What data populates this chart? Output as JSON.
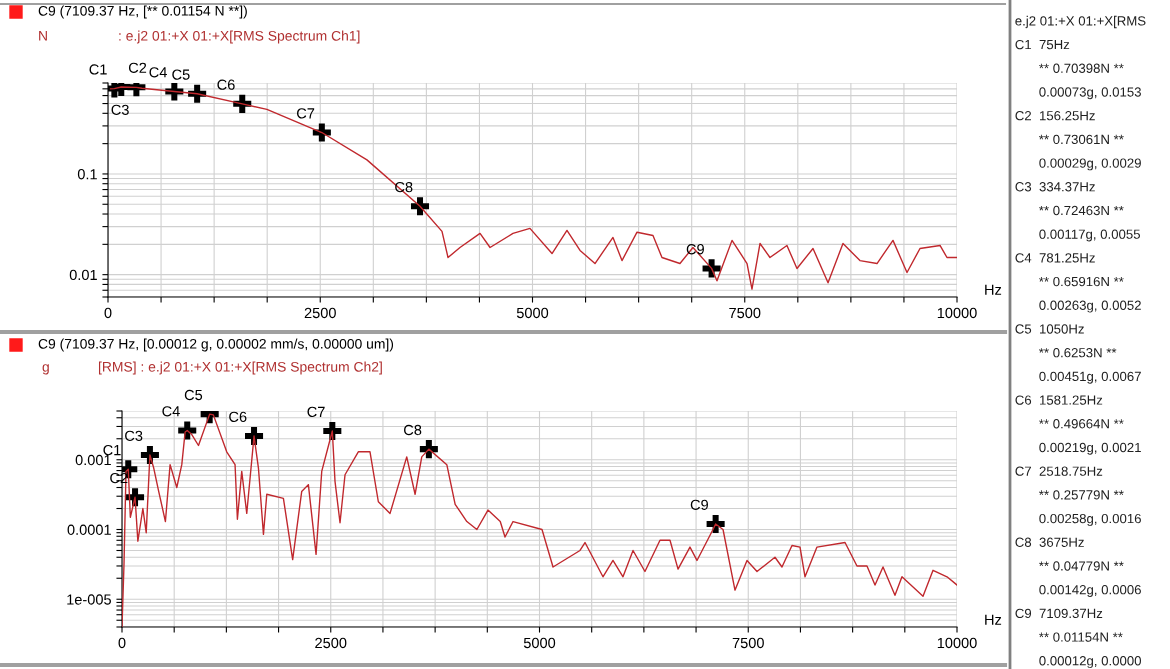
{
  "chart_data": [
    {
      "type": "line",
      "title": "C9 (7109.37 Hz, [** 0.01154 N **])",
      "subtitle": ": e.j2 01:+X 01:+X[RMS Spectrum Ch1]",
      "ylabel": "N",
      "xlabel": "Hz",
      "log": "y",
      "grid": true,
      "xlim": [
        0,
        10000
      ],
      "xticks": [
        0,
        {
          "value": 625,
          "label": null
        },
        {
          "value": 1250,
          "label": null
        },
        {
          "value": 1875,
          "label": null
        },
        2500,
        {
          "value": 3125,
          "label": null
        },
        {
          "value": 3750,
          "label": null
        },
        {
          "value": 4375,
          "label": null
        },
        5000,
        {
          "value": 5625,
          "label": null
        },
        {
          "value": 6250,
          "label": null
        },
        {
          "value": 6875,
          "label": null
        },
        7500,
        {
          "value": 8125,
          "label": null
        },
        {
          "value": 8750,
          "label": null
        },
        {
          "value": 9375,
          "label": null
        },
        10000
      ],
      "ylim": [
        0.006,
        0.8
      ],
      "yticks": [
        {
          "value": 0.006,
          "label": null
        },
        {
          "value": 0.007,
          "label": null
        },
        {
          "value": 0.008,
          "label": null
        },
        {
          "value": 0.009,
          "label": null
        },
        0.01,
        {
          "value": 0.02,
          "label": null
        },
        {
          "value": 0.03,
          "label": null
        },
        {
          "value": 0.04,
          "label": null
        },
        {
          "value": 0.05,
          "label": null
        },
        {
          "value": 0.06,
          "label": null
        },
        {
          "value": 0.07,
          "label": null
        },
        {
          "value": 0.08,
          "label": null
        },
        {
          "value": 0.09,
          "label": null
        },
        0.1,
        {
          "value": 0.2,
          "label": null
        },
        {
          "value": 0.3,
          "label": null
        },
        {
          "value": 0.4,
          "label": null
        },
        {
          "value": 0.5,
          "label": null
        },
        {
          "value": 0.6,
          "label": null
        },
        {
          "value": 0.7,
          "label": null
        },
        {
          "value": 0.8,
          "label": null
        }
      ],
      "series": [
        {
          "type": "line",
          "color": "#c0282d",
          "x": [
            30,
            75,
            156.25,
            334.37,
            400,
            781.25,
            1050,
            1581.25,
            1872,
            2518.75,
            3050,
            3675,
            3934,
            4005,
            4146,
            4382,
            4500,
            4770,
            4970,
            5230,
            5406,
            5560,
            5736,
            5948,
            6054,
            6231,
            6419,
            6525,
            6737,
            6890,
            7109.37,
            7173,
            7350,
            7527,
            7585,
            7680,
            7797,
            7997,
            8115,
            8304,
            8481,
            8657,
            8857,
            9058,
            9246,
            9411,
            9564,
            9800,
            9882,
            10000
          ],
          "values": [
            0.7,
            0.70398,
            0.73061,
            0.72463,
            0.71,
            0.65916,
            0.6253,
            0.49664,
            0.437,
            0.25779,
            0.138,
            0.04779,
            0.0269,
            0.0148,
            0.0186,
            0.0257,
            0.0186,
            0.0257,
            0.0288,
            0.0162,
            0.0275,
            0.0174,
            0.0129,
            0.0234,
            0.0138,
            0.0264,
            0.0245,
            0.0148,
            0.0129,
            0.0186,
            0.01154,
            0.0087,
            0.0219,
            0.0129,
            0.0072,
            0.0204,
            0.0148,
            0.0195,
            0.0115,
            0.0182,
            0.0083,
            0.0204,
            0.0138,
            0.0129,
            0.0219,
            0.0105,
            0.0182,
            0.0195,
            0.0148,
            0.0148
          ]
        },
        {
          "type": "scatter",
          "marker": "cross",
          "color": "#000000",
          "x": [
            75,
            156.25,
            334.37,
            781.25,
            1050,
            1581.25,
            2518.75,
            3675,
            7109.37
          ],
          "values": [
            0.70398,
            0.73061,
            0.72463,
            0.65916,
            0.6253,
            0.49664,
            0.25779,
            0.04779,
            0.01154
          ]
        }
      ],
      "annotations": [
        {
          "text": "C1",
          "x": 75,
          "y": 0.70398
        },
        {
          "text": "C2",
          "x": 156.25,
          "y": 0.73061
        },
        {
          "text": "C3",
          "x": 334.37,
          "y": 0.72463
        },
        {
          "text": "C4",
          "x": 781.25,
          "y": 0.65916
        },
        {
          "text": "C5",
          "x": 1050,
          "y": 0.6253
        },
        {
          "text": "C6",
          "x": 1581.25,
          "y": 0.49664
        },
        {
          "text": "C7",
          "x": 2518.75,
          "y": 0.25779
        },
        {
          "text": "C8",
          "x": 3675,
          "y": 0.04779
        },
        {
          "text": "C9",
          "x": 7109.37,
          "y": 0.01154
        }
      ]
    },
    {
      "type": "line",
      "title": "C9 (7109.37 Hz, [0.00012 g, 0.00002 mm/s, 0.00000 um])",
      "subtitle": "[RMS] : e.j2 01:+X 01:+X[RMS Spectrum Ch2]",
      "ylabel": "g",
      "xlabel": "Hz",
      "log": "y",
      "grid": true,
      "xlim": [
        0,
        10000
      ],
      "xticks": [
        0,
        {
          "value": 625,
          "label": null
        },
        {
          "value": 1250,
          "label": null
        },
        {
          "value": 1875,
          "label": null
        },
        2500,
        {
          "value": 3125,
          "label": null
        },
        {
          "value": 3750,
          "label": null
        },
        {
          "value": 4375,
          "label": null
        },
        5000,
        {
          "value": 5625,
          "label": null
        },
        {
          "value": 6250,
          "label": null
        },
        {
          "value": 6875,
          "label": null
        },
        7500,
        {
          "value": 8125,
          "label": null
        },
        {
          "value": 8750,
          "label": null
        },
        {
          "value": 9375,
          "label": null
        },
        10000
      ],
      "ylim": [
        4e-06,
        0.005
      ],
      "yticks": [
        {
          "value": 4e-06,
          "label": null
        },
        {
          "value": 5e-06,
          "label": null
        },
        {
          "value": 6e-06,
          "label": null
        },
        {
          "value": 7e-06,
          "label": null
        },
        {
          "value": 8e-06,
          "label": null
        },
        {
          "value": 9e-06,
          "label": null
        },
        {
          "value": 1e-05,
          "label": "1e-005"
        },
        {
          "value": 2e-05,
          "label": null
        },
        {
          "value": 3e-05,
          "label": null
        },
        {
          "value": 4e-05,
          "label": null
        },
        {
          "value": 5e-05,
          "label": null
        },
        {
          "value": 6e-05,
          "label": null
        },
        {
          "value": 7e-05,
          "label": null
        },
        {
          "value": 8e-05,
          "label": null
        },
        {
          "value": 9e-05,
          "label": null
        },
        0.0001,
        {
          "value": 0.0002,
          "label": null
        },
        {
          "value": 0.0003,
          "label": null
        },
        {
          "value": 0.0004,
          "label": null
        },
        {
          "value": 0.0005,
          "label": null
        },
        {
          "value": 0.0006,
          "label": null
        },
        {
          "value": 0.0007,
          "label": null
        },
        {
          "value": 0.0008,
          "label": null
        },
        {
          "value": 0.0009,
          "label": null
        },
        0.001,
        {
          "value": 0.002,
          "label": null
        },
        {
          "value": 0.003,
          "label": null
        },
        {
          "value": 0.004,
          "label": null
        },
        {
          "value": 0.005,
          "label": null
        }
      ],
      "series": [
        {
          "type": "line",
          "color": "#c0282d",
          "x": [
            0,
            24,
            48,
            75,
            100,
            156.25,
            190,
            250,
            290,
            334.37,
            380,
            440,
            520,
            576,
            656,
            716,
            756,
            781.25,
            836,
            916,
            1050,
            1094,
            1254,
            1354,
            1382,
            1434,
            1494,
            1581.25,
            1634,
            1694,
            1734,
            1933,
            2044,
            2152,
            2232,
            2324,
            2392,
            2518.75,
            2551,
            2611,
            2671,
            2830,
            2970,
            3070,
            3210,
            3410,
            3510,
            3590,
            3675,
            3890,
            3990,
            4130,
            4250,
            4383,
            4530,
            4587,
            4683,
            5030,
            5162,
            5485,
            5545,
            5760,
            5880,
            6000,
            6120,
            6263,
            6443,
            6563,
            6659,
            6802,
            6886,
            7078,
            7109.37,
            7198,
            7341,
            7485,
            7605,
            7820,
            7904,
            8024,
            8120,
            8180,
            8323,
            8659,
            8802,
            8922,
            9018,
            9114,
            9257,
            9341,
            9593,
            9713,
            9880,
            10000
          ],
          "values": [
            4e-06,
            3.2e-05,
            0.00068,
            0.00073,
            0.00015,
            0.00029,
            6.8e-05,
            0.0002,
            9e-05,
            0.00117,
            0.00076,
            0.00035,
            0.00013,
            0.00085,
            0.0004,
            0.00085,
            0.0025,
            0.00263,
            0.0023,
            0.0016,
            0.00451,
            0.0044,
            0.0013,
            0.00085,
            0.00014,
            0.00068,
            0.00017,
            0.00219,
            0.00076,
            8.5e-05,
            0.00032,
            0.00028,
            3.7e-05,
            0.00035,
            0.00044,
            4.4e-05,
            0.00068,
            0.00258,
            0.00049,
            0.000125,
            0.00061,
            0.0013,
            0.0013,
            0.00025,
            0.00017,
            0.0011,
            0.00032,
            0.0011,
            0.00142,
            0.00085,
            0.00023,
            0.00013,
            0.0001,
            0.00019,
            0.00013,
            7.8e-05,
            0.00013,
            0.0001,
            2.9e-05,
            5e-05,
            6.5e-05,
            2.1e-05,
            3.6e-05,
            2.1e-05,
            5e-05,
            2.5e-05,
            7e-05,
            7e-05,
            2.7e-05,
            5.6e-05,
            3.6e-05,
            0.0001,
            0.00012,
            0.0001,
            1.35e-05,
            3.6e-05,
            2.5e-05,
            4e-05,
            2.9e-05,
            5.9e-05,
            5.6e-05,
            2.1e-05,
            5.6e-05,
            6.5e-05,
            3e-05,
            3e-05,
            1.6e-05,
            2.9e-05,
            1.14e-05,
            2.1e-05,
            1.1e-05,
            2.6e-05,
            2.1e-05,
            1.6e-05
          ]
        },
        {
          "type": "scatter",
          "marker": "cross",
          "color": "#000000",
          "x": [
            75,
            156.25,
            334.37,
            781.25,
            1050,
            1581.25,
            2518.75,
            3675,
            7109.37
          ],
          "values": [
            0.00073,
            0.00029,
            0.00117,
            0.00263,
            0.00451,
            0.00219,
            0.00258,
            0.00142,
            0.00012
          ]
        }
      ],
      "annotations": [
        {
          "text": "C1",
          "x": 75,
          "y": 0.00073
        },
        {
          "text": "C2",
          "x": 156.25,
          "y": 0.00029
        },
        {
          "text": "C3",
          "x": 334.37,
          "y": 0.00117
        },
        {
          "text": "C4",
          "x": 781.25,
          "y": 0.00263
        },
        {
          "text": "C5",
          "x": 1050,
          "y": 0.00451
        },
        {
          "text": "C6",
          "x": 1581.25,
          "y": 0.00219
        },
        {
          "text": "C7",
          "x": 2518.75,
          "y": 0.00258
        },
        {
          "text": "C8",
          "x": 3675,
          "y": 0.00142
        },
        {
          "text": "C9",
          "x": 7109.37,
          "y": 0.00012
        }
      ]
    },
    {
      "type": "other",
      "annotations": [
        "e.j2 01:+X 01:+X[RMS",
        "C1  75Hz",
        "** 0.70398N **",
        "0.00073g, 0.0153",
        "C2  156.25Hz",
        "** 0.73061N **",
        "0.00029g, 0.0029",
        "C3  334.37Hz",
        "** 0.72463N **",
        "0.00117g, 0.0055",
        "C4  781.25Hz",
        "** 0.65916N **",
        "0.00263g, 0.0052",
        "C5  1050Hz",
        "** 0.6253N **",
        "0.00451g, 0.0067",
        "C6  1581.25Hz",
        "** 0.49664N **",
        "0.00219g, 0.0021",
        "C7  2518.75Hz",
        "** 0.25779N **",
        "0.00258g, 0.0016",
        "C8  3675Hz",
        "** 0.04779N **",
        "0.00142g, 0.0006",
        "C9  7109.37Hz",
        "** 0.01154N **",
        "0.00012g, 0.0000"
      ]
    }
  ]
}
